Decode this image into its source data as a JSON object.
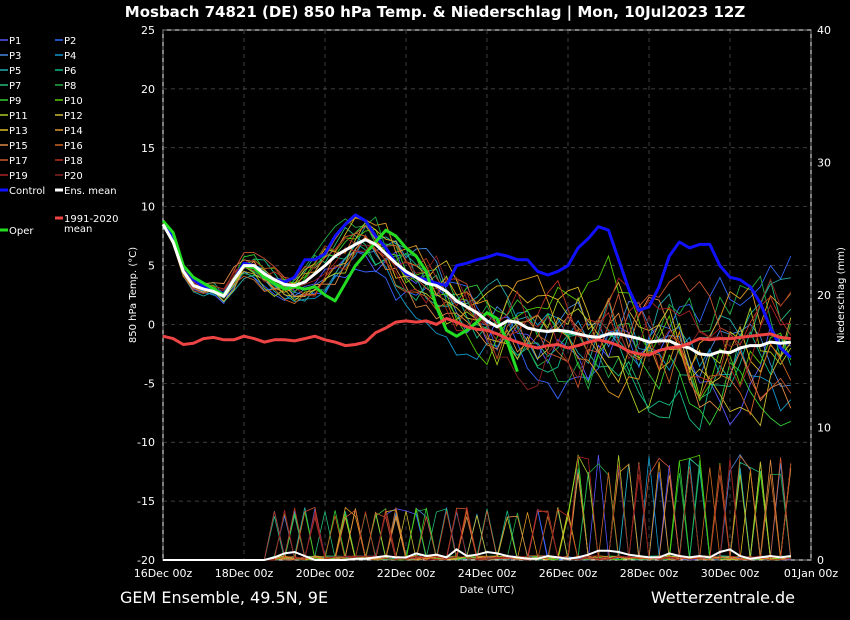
{
  "chart_data": {
    "type": "line",
    "title": "Mosbach 74821 (DE)  850 hPa Temp. & Niederschlag | Mon, 10Jul2023 12Z",
    "ylabel_left": "850 hPa Temp. (°C)",
    "ylabel_right": "Niederschlag (mm)",
    "xlabel": "Date (UTC)",
    "ylim_left": [
      -20,
      25
    ],
    "ylim_right": [
      0,
      40
    ],
    "left_ticks": [
      25,
      20,
      15,
      10,
      5,
      0,
      -5,
      -10,
      -15,
      -20
    ],
    "right_ticks": [
      40,
      30,
      20,
      10,
      0
    ],
    "x_ticks": [
      "16Dec 00z",
      "18Dec 00z",
      "20Dec 00z",
      "22Dec 00z",
      "24Dec 00z",
      "26Dec 00z",
      "28Dec 00z",
      "30Dec 00z",
      "01Jan 00z"
    ],
    "x_range_hours": [
      0,
      384
    ],
    "step_hours": 6,
    "legend": [
      {
        "name": "P1",
        "color": "#5555ff"
      },
      {
        "name": "P2",
        "color": "#3366ff"
      },
      {
        "name": "P3",
        "color": "#4488dd"
      },
      {
        "name": "P4",
        "color": "#1199cc"
      },
      {
        "name": "P5",
        "color": "#22aaaa"
      },
      {
        "name": "P6",
        "color": "#11bb88"
      },
      {
        "name": "P7",
        "color": "#22bb77"
      },
      {
        "name": "P8",
        "color": "#22aa44"
      },
      {
        "name": "P9",
        "color": "#33cc33"
      },
      {
        "name": "P10",
        "color": "#55cc00"
      },
      {
        "name": "P11",
        "color": "#aacc22"
      },
      {
        "name": "P12",
        "color": "#ccbb33"
      },
      {
        "name": "P13",
        "color": "#ddbb22"
      },
      {
        "name": "P14",
        "color": "#dd9922"
      },
      {
        "name": "P15",
        "color": "#dd8844"
      },
      {
        "name": "P16",
        "color": "#cc6622"
      },
      {
        "name": "P17",
        "color": "#cc5533"
      },
      {
        "name": "P18",
        "color": "#bb3322"
      },
      {
        "name": "P19",
        "color": "#aa2222"
      },
      {
        "name": "P20",
        "color": "#882222"
      },
      {
        "name": "Control",
        "color": "#1111ff"
      },
      {
        "name": "Ens. mean",
        "color": "#ffffff"
      },
      {
        "name": "Oper",
        "color": "#22dd22"
      },
      {
        "name": "1991-2020 mean",
        "color": "#ee4444"
      }
    ],
    "series": [
      {
        "name": "Control",
        "color": "#1111ff",
        "values": [
          8.5,
          7.5,
          5.0,
          3.8,
          3.2,
          3.0,
          2.6,
          3.8,
          5.2,
          5.0,
          4.3,
          3.8,
          3.6,
          4.0,
          5.5,
          5.5,
          6.0,
          7.5,
          8.5,
          9.3,
          8.8,
          7.5,
          6.5,
          5.2,
          4.3,
          4.0,
          3.8,
          3.5,
          3.3,
          5.0,
          5.2,
          5.5,
          5.7,
          6.0,
          5.8,
          5.5,
          5.5,
          4.5,
          4.2,
          4.5,
          5.0,
          6.5,
          7.3,
          8.3,
          8.0,
          5.5,
          3.0,
          1.2,
          1.5,
          3.2,
          5.8,
          7.0,
          6.5,
          6.8,
          6.8,
          5.0,
          4.0,
          3.8,
          3.2,
          1.8,
          -0.3,
          -2.0,
          -2.8
        ]
      },
      {
        "name": "Oper",
        "color": "#22dd22",
        "values": [
          8.8,
          7.8,
          5.0,
          4.0,
          3.5,
          3.0,
          2.5,
          3.8,
          5.0,
          4.8,
          4.0,
          3.5,
          3.0,
          3.2,
          3.0,
          3.2,
          2.5,
          2.0,
          3.5,
          5.0,
          6.0,
          7.0,
          8.0,
          7.5,
          6.5,
          5.8,
          4.5,
          1.5,
          -0.5,
          -1.0,
          -0.5,
          0.2,
          1.0,
          0.5,
          -1.5,
          -4.0
        ]
      },
      {
        "name": "Ens. mean",
        "color": "#ffffff",
        "values": [
          8.5,
          7.0,
          4.5,
          3.3,
          3.0,
          2.8,
          2.4,
          3.8,
          5.0,
          5.0,
          4.3,
          3.8,
          3.4,
          3.3,
          3.6,
          4.3,
          5.0,
          5.8,
          6.3,
          6.8,
          7.2,
          6.8,
          6.0,
          5.2,
          4.5,
          4.0,
          3.5,
          3.3,
          2.8,
          2.0,
          1.5,
          1.0,
          0.3,
          -0.2,
          0.3,
          0.2,
          -0.3,
          -0.5,
          -0.6,
          -0.5,
          -0.6,
          -0.8,
          -1.0,
          -1.1,
          -0.8,
          -0.8,
          -1.0,
          -1.2,
          -1.5,
          -1.4,
          -1.4,
          -1.8,
          -2.0,
          -2.5,
          -2.6,
          -2.3,
          -2.4,
          -2.0,
          -1.8,
          -1.8,
          -1.5,
          -1.6,
          -1.5
        ]
      },
      {
        "name": "1991-2020 mean",
        "color": "#ee4444",
        "values": [
          -1.0,
          -1.2,
          -1.7,
          -1.6,
          -1.2,
          -1.1,
          -1.3,
          -1.3,
          -1.0,
          -1.2,
          -1.5,
          -1.3,
          -1.3,
          -1.4,
          -1.2,
          -1.0,
          -1.3,
          -1.5,
          -1.8,
          -1.7,
          -1.5,
          -0.7,
          -0.3,
          0.2,
          0.3,
          0.2,
          0.3,
          0.0,
          0.5,
          0.2,
          -0.2,
          -0.4,
          -0.5,
          -0.8,
          -1.2,
          -1.5,
          -1.8,
          -2.0,
          -1.8,
          -1.7,
          -2.0,
          -1.8,
          -1.5,
          -1.3,
          -1.5,
          -1.8,
          -2.3,
          -2.5,
          -2.6,
          -2.2,
          -2.0,
          -1.9,
          -1.6,
          -1.2,
          -1.3,
          -1.2,
          -1.2,
          -1.1,
          -1.0,
          -0.9,
          -0.8,
          -1.1,
          -1.2
        ]
      }
    ],
    "member_spread_note": "20 ensemble members P1–P20 drawn as thin lines",
    "precip_series": [
      {
        "name": "Ens. mean precip",
        "color": "#ffffff",
        "values": [
          0,
          0,
          0,
          0,
          0,
          0,
          0,
          0,
          0,
          0,
          0,
          0.2,
          0.5,
          0.6,
          0.3,
          0,
          0,
          0,
          0,
          0.1,
          0.1,
          0.2,
          0.3,
          0.2,
          0.2,
          0.5,
          0.3,
          0.4,
          0.2,
          0.8,
          0.3,
          0.4,
          0.6,
          0.5,
          0.3,
          0.2,
          0.1,
          0.1,
          0.3,
          0.2,
          0.1,
          0.2,
          0.4,
          0.7,
          0.7,
          0.6,
          0.4,
          0.3,
          0.2,
          0.2,
          0.5,
          0.3,
          0.2,
          0.3,
          0.2,
          0.6,
          0.8,
          0.3,
          0.1,
          0.2,
          0.3,
          0.2,
          0.3
        ]
      }
    ]
  },
  "footer": {
    "left": "GEM Ensemble, 49.5N, 9E",
    "right": "Wetterzentrale.de"
  }
}
